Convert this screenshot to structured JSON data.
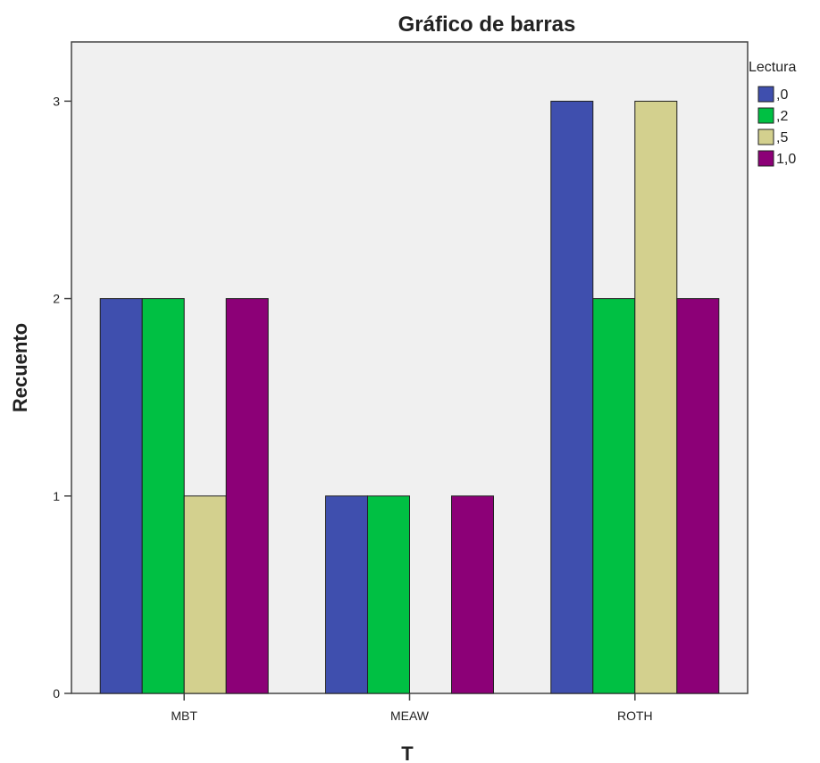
{
  "chart_data": {
    "type": "bar",
    "title": "Gráfico de barras",
    "xlabel": "T",
    "ylabel": "Recuento",
    "categories": [
      "MBT",
      "MEAW",
      "ROTH"
    ],
    "series": [
      {
        "name": ",0",
        "color": "#3f4fae",
        "values": [
          2,
          1,
          3
        ]
      },
      {
        "name": ",2",
        "color": "#00c043",
        "values": [
          2,
          1,
          2
        ]
      },
      {
        "name": ",5",
        "color": "#d3d08e",
        "values": [
          1,
          0,
          3
        ]
      },
      {
        "name": "1,0",
        "color": "#8c0077",
        "values": [
          2,
          1,
          2
        ]
      }
    ],
    "yticks": [
      0,
      1,
      2,
      3
    ],
    "ylim": [
      0,
      3.3
    ],
    "grid": false,
    "legend": {
      "title": "Lectura",
      "position": "right"
    },
    "plot_background": "#f0f0f0"
  }
}
